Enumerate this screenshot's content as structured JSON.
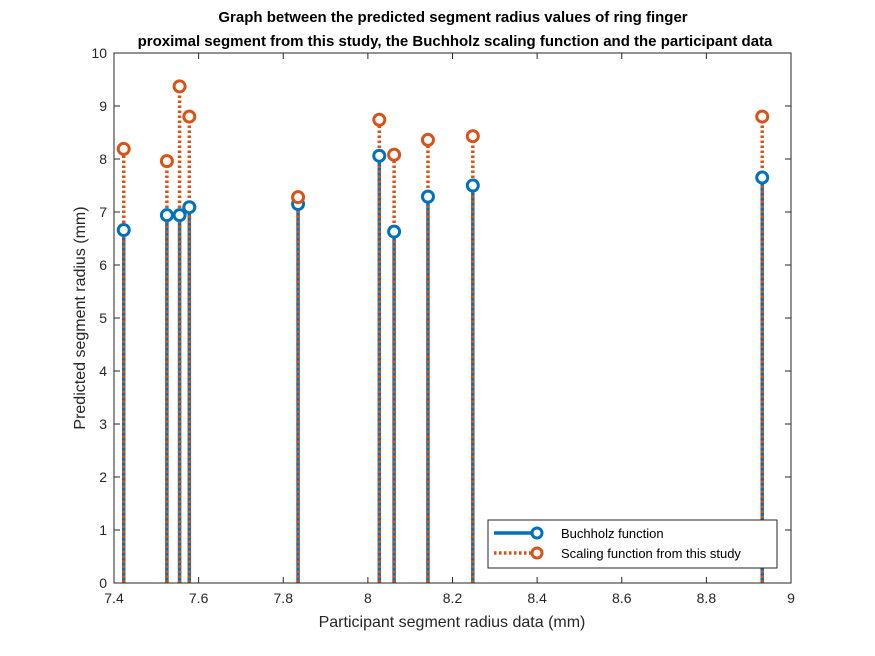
{
  "chart_data": {
    "type": "stem",
    "title": [
      "Graph between the predicted segment radius values of ring finger",
      "proximal segment from this study, the Buchholz scaling function and the participant data"
    ],
    "xlabel": "Participant segment radius data (mm)",
    "ylabel": "Predicted segment radius (mm)",
    "xlim": [
      7.4,
      9.0
    ],
    "ylim": [
      0,
      10
    ],
    "xticks": [
      "7.4",
      "7.6",
      "7.8",
      "8",
      "8.2",
      "8.4",
      "8.6",
      "8.8",
      "9"
    ],
    "yticks": [
      "0",
      "1",
      "2",
      "3",
      "4",
      "5",
      "6",
      "7",
      "8",
      "9",
      "10"
    ],
    "grid": false,
    "legend_position": "bottom-right",
    "x": [
      7.423,
      7.525,
      7.555,
      7.578,
      7.835,
      8.027,
      8.062,
      8.142,
      8.248,
      8.932
    ],
    "series": [
      {
        "name": "Buchholz function",
        "color": "#0072BD",
        "line_style": "solid",
        "values": [
          6.66,
          6.94,
          6.94,
          7.09,
          7.15,
          8.06,
          6.63,
          7.29,
          7.5,
          7.65
        ]
      },
      {
        "name": "Scaling function from this study",
        "color": "#D95319",
        "line_style": "dotted",
        "values": [
          8.19,
          7.96,
          9.37,
          8.8,
          7.28,
          8.74,
          8.08,
          8.36,
          8.43,
          8.8
        ]
      }
    ]
  }
}
